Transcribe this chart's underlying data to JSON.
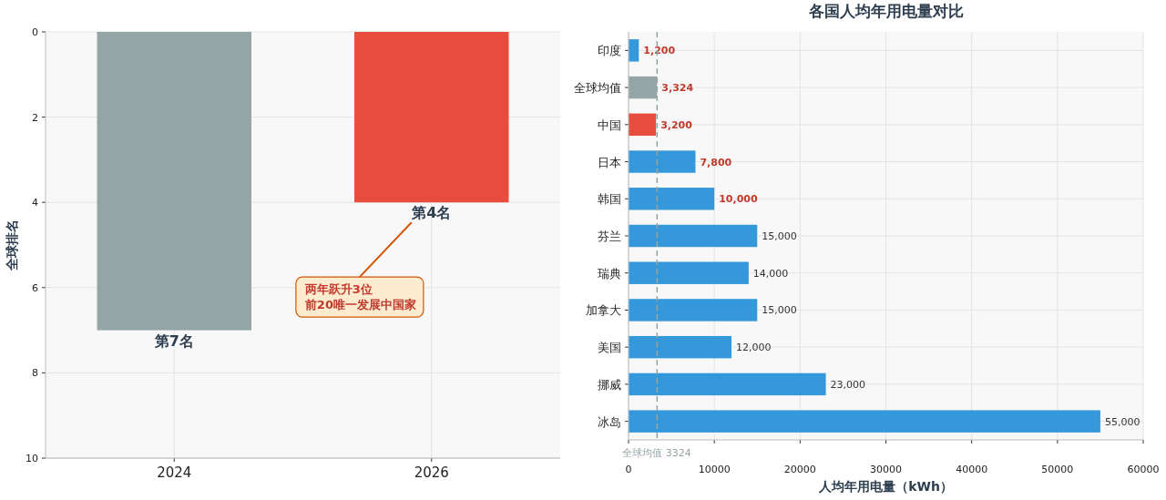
{
  "chart_data": [
    {
      "type": "bar",
      "ylabel": "全球排名",
      "categories": [
        "2024",
        "2026"
      ],
      "series": [
        {
          "values": [
            7,
            4
          ],
          "colors": [
            "#95a5a6",
            "#e74c3c"
          ],
          "value_labels": [
            "第7名",
            "第4名"
          ]
        }
      ],
      "ylim": [
        10,
        0
      ],
      "yticks": [
        0,
        2,
        4,
        6,
        8,
        10
      ],
      "grid": true,
      "annotations": [
        "两年跃升3位",
        "前20唯一发展中国家"
      ]
    },
    {
      "type": "bar",
      "orientation": "horizontal",
      "title": "各国人均年用电量对比",
      "xlabel": "人均年用电量（kWh）",
      "categories": [
        "印度",
        "全球均值",
        "中国",
        "日本",
        "韩国",
        "芬兰",
        "瑞典",
        "加拿大",
        "美国",
        "挪威",
        "冰岛"
      ],
      "series": [
        {
          "values": [
            1200,
            3324,
            3200,
            7800,
            10000,
            15000,
            14000,
            15000,
            12000,
            23000,
            55000
          ],
          "colors": [
            "#3498db",
            "#95a5a6",
            "#e74c3c",
            "#3498db",
            "#3498db",
            "#3498db",
            "#3498db",
            "#3498db",
            "#3498db",
            "#3498db",
            "#3498db"
          ],
          "value_labels": [
            "1,200",
            "3,324",
            "3,200",
            "7,800",
            "10,000",
            "15,000",
            "14,000",
            "15,000",
            "12,000",
            "23,000",
            "55,000"
          ]
        }
      ],
      "xlim": [
        0,
        60000
      ],
      "xticks": [
        0,
        10000,
        20000,
        30000,
        40000,
        50000,
        60000
      ],
      "grid": true,
      "ref_lines": [
        {
          "axis": "x",
          "value": 3324,
          "label": "全球均值 3324",
          "color": "#95a5a6",
          "line_style": "dashed"
        }
      ]
    }
  ]
}
